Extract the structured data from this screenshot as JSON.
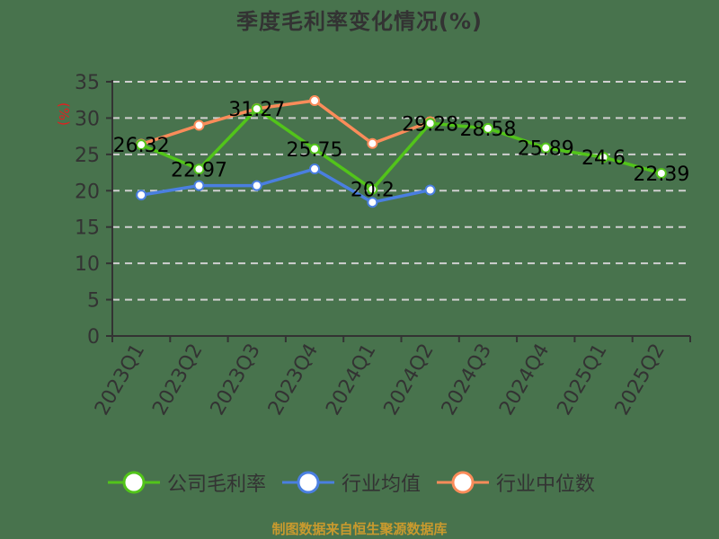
{
  "title": "季度毛利率变化情况(%)",
  "footer": "制图数据来自恒生聚源数据库",
  "legend": [
    {
      "label": "公司毛利率",
      "color": "#52c41a"
    },
    {
      "label": "行业均值",
      "color": "#4a7fe0"
    },
    {
      "label": "行业中位数",
      "color": "#fa8c5a"
    }
  ],
  "chart_data": {
    "type": "line",
    "title": "季度毛利率变化情况(%)",
    "xlabel": "",
    "ylabel": "(%)",
    "ylim": [
      0,
      35
    ],
    "yticks": [
      0,
      5,
      10,
      15,
      20,
      25,
      30,
      35
    ],
    "grid": "horizontal dashed",
    "legend_position": "bottom",
    "categories": [
      "2023Q1",
      "2023Q2",
      "2023Q3",
      "2023Q4",
      "2024Q1",
      "2024Q2",
      "2024Q3",
      "2024Q4",
      "2025Q1",
      "2025Q2"
    ],
    "series": [
      {
        "name": "公司毛利率",
        "color": "#52c41a",
        "values": [
          26.32,
          22.97,
          31.27,
          25.75,
          20.2,
          29.28,
          28.58,
          25.89,
          24.6,
          22.39
        ],
        "labels_shown": true
      },
      {
        "name": "行业均值",
        "color": "#4a7fe0",
        "values": [
          19.4,
          20.7,
          20.7,
          23.0,
          18.4,
          20.1,
          null,
          null,
          null,
          null
        ],
        "labels_shown": false
      },
      {
        "name": "行业中位数",
        "color": "#fa8c5a",
        "values": [
          26.4,
          29.0,
          31.3,
          32.4,
          26.5,
          29.5,
          null,
          null,
          null,
          null
        ],
        "labels_shown": false
      }
    ]
  }
}
